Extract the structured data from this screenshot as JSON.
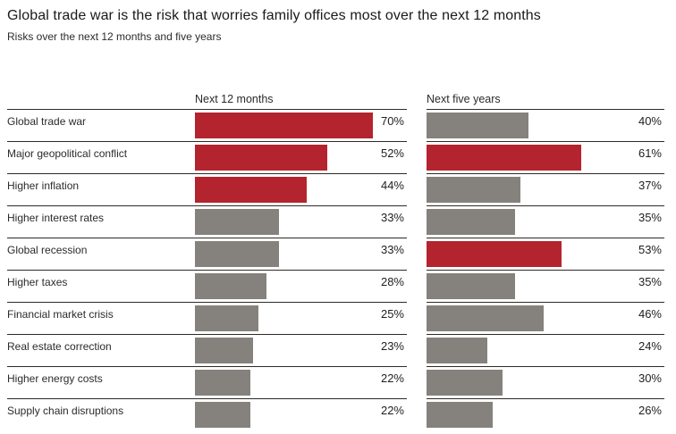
{
  "header": {
    "title": "Global trade war is the risk that worries family offices most over the next 12 months",
    "subtitle": "Risks over the next 12 months and five years"
  },
  "chart_data": {
    "type": "bar",
    "orientation": "horizontal",
    "title": "Global trade war is the risk that worries family offices most over the next 12 months",
    "subtitle": "Risks over the next 12 months and five years",
    "columns": [
      "Next 12 months",
      "Next five years"
    ],
    "categories": [
      "Global trade war",
      "Major geopolitical conflict",
      "Higher inflation",
      "Higher interest rates",
      "Global recession",
      "Higher taxes",
      "Financial market crisis",
      "Real estate correction",
      "Higher energy costs",
      "Supply chain disruptions"
    ],
    "series": [
      {
        "name": "Next 12 months",
        "values": [
          70,
          52,
          44,
          33,
          33,
          28,
          25,
          23,
          22,
          22
        ],
        "highlighted": [
          true,
          true,
          true,
          false,
          false,
          false,
          false,
          false,
          false,
          false
        ]
      },
      {
        "name": "Next five years",
        "values": [
          40,
          61,
          37,
          35,
          53,
          35,
          46,
          24,
          30,
          26
        ],
        "highlighted": [
          false,
          true,
          false,
          false,
          true,
          false,
          false,
          false,
          false,
          false
        ]
      }
    ],
    "value_suffix": "%",
    "xlim": [
      0,
      100
    ],
    "grid": false,
    "legend": false,
    "colors": {
      "highlight": "#b4242e",
      "default": "#85827d"
    }
  }
}
